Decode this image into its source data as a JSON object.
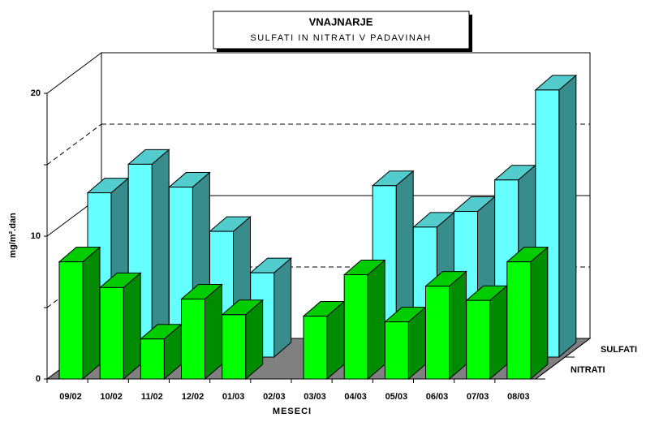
{
  "chart_data": {
    "type": "bar3d",
    "title": "VNAJNARJE",
    "subtitle": "SULFATI IN NITRATI V PADAVINAH",
    "y_label": "mg/m².dan",
    "x_label": "MESECI",
    "categories": [
      "09/02",
      "10/02",
      "11/02",
      "12/02",
      "01/03",
      "02/03",
      "03/03",
      "04/03",
      "05/03",
      "06/03",
      "07/03",
      "08/03"
    ],
    "series": [
      {
        "name": "NITRATI",
        "color": "#00ff00",
        "values": [
          8.2,
          6.4,
          2.8,
          5.6,
          4.5,
          null,
          4.4,
          7.3,
          4.0,
          6.5,
          5.5,
          8.2
        ]
      },
      {
        "name": "SULFATI",
        "color": "#66ffff",
        "values": [
          11.5,
          13.5,
          11.9,
          8.8,
          5.9,
          null,
          null,
          12.0,
          9.1,
          10.2,
          12.4,
          18.7
        ]
      }
    ],
    "ylim": [
      0,
      20
    ],
    "yticks": [
      0,
      10,
      20
    ],
    "grid": true
  }
}
